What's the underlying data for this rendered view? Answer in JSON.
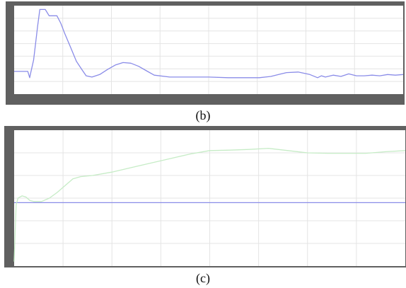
{
  "captions": {
    "b": "(b)",
    "c": "(c)"
  },
  "colors": {
    "frame": "#606060",
    "plot_bg": "#ffffff",
    "grid": "#e4e4e4",
    "trace_blue": "#8a8ce8",
    "trace_green": "#c6ecc6"
  },
  "chart_data": [
    {
      "type": "line",
      "title": "",
      "xlabel": "",
      "ylabel": "",
      "xlim": [
        0,
        10
      ],
      "ylim": [
        0,
        7
      ],
      "grid": true,
      "x_gridlines": 8,
      "y_gridlines": 7,
      "series": [
        {
          "color": "#8a8ce8",
          "x": [
            0,
            0.35,
            0.4,
            0.42,
            0.5,
            0.55,
            0.6,
            0.66,
            0.8,
            0.9,
            1.0,
            1.1,
            1.2,
            1.3,
            1.45,
            1.6,
            1.75,
            1.85,
            2.0,
            2.2,
            2.4,
            2.6,
            2.8,
            3.0,
            3.2,
            3.4,
            3.6,
            4.0,
            4.5,
            5.0,
            5.5,
            6.0,
            6.3,
            6.6,
            6.8,
            7.0,
            7.3,
            7.6,
            7.8,
            7.9,
            8.0,
            8.2,
            8.4,
            8.6,
            8.8,
            9.0,
            9.2,
            9.4,
            9.6,
            9.8,
            10.0
          ],
          "y": [
            1.8,
            1.8,
            1.3,
            1.6,
            2.7,
            4.0,
            5.3,
            6.7,
            6.7,
            6.2,
            6.2,
            6.2,
            5.6,
            4.8,
            3.7,
            2.6,
            1.9,
            1.45,
            1.35,
            1.55,
            1.95,
            2.3,
            2.5,
            2.45,
            2.2,
            1.85,
            1.5,
            1.35,
            1.35,
            1.35,
            1.3,
            1.3,
            1.3,
            1.4,
            1.55,
            1.7,
            1.75,
            1.55,
            1.3,
            1.45,
            1.35,
            1.5,
            1.4,
            1.6,
            1.45,
            1.45,
            1.5,
            1.45,
            1.55,
            1.5,
            1.55
          ]
        }
      ]
    },
    {
      "type": "line",
      "title": "",
      "xlabel": "",
      "ylabel": "",
      "xlim": [
        0,
        10
      ],
      "ylim": [
        0,
        6
      ],
      "grid": true,
      "x_gridlines": 8,
      "y_gridlines": 6,
      "series": [
        {
          "color": "#8a8ce8",
          "x": [
            0,
            10
          ],
          "y": [
            2.8,
            2.8
          ]
        },
        {
          "color": "#c6ecc6",
          "x": [
            0,
            0.05,
            0.1,
            0.2,
            0.3,
            0.4,
            0.5,
            0.7,
            0.9,
            1.1,
            1.3,
            1.5,
            1.7,
            2.0,
            2.5,
            3.0,
            3.5,
            4.0,
            4.5,
            5.0,
            5.5,
            6.0,
            6.5,
            7.0,
            7.5,
            8.0,
            8.5,
            9.0,
            9.5,
            10.0
          ],
          "y": [
            0.2,
            2.7,
            3.0,
            3.1,
            3.05,
            2.9,
            2.85,
            2.85,
            3.0,
            3.25,
            3.55,
            3.85,
            3.95,
            4.0,
            4.15,
            4.35,
            4.55,
            4.75,
            4.95,
            5.1,
            5.12,
            5.15,
            5.2,
            5.1,
            5.0,
            4.98,
            4.98,
            4.98,
            5.05,
            5.1
          ]
        }
      ]
    }
  ]
}
